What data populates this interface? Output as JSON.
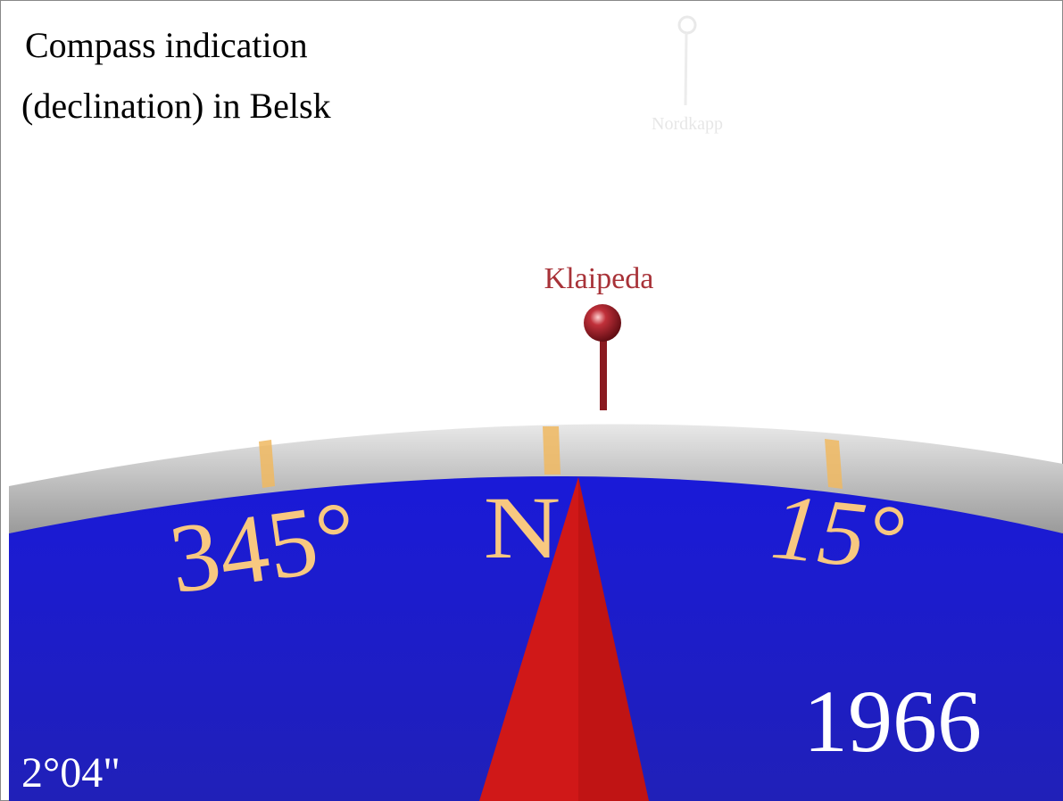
{
  "title": {
    "lines": [
      "Compass indication",
      "(declination) in Belsk"
    ]
  },
  "markers": [
    {
      "label": "Nordkapp"
    },
    {
      "label": "Klaipeda"
    }
  ],
  "dial": {
    "left_label": "345°",
    "center_label": "N",
    "right_label": "15°"
  },
  "year": "1966",
  "declination": "2°04\""
}
